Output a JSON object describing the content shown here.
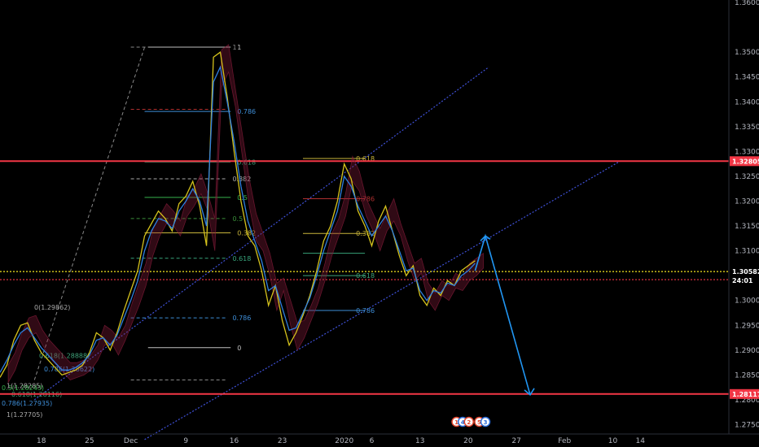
{
  "chart_data": {
    "type": "line",
    "title": "",
    "xlabel": "",
    "ylabel": "",
    "ylim": [
      1.2705,
      1.3605
    ],
    "y_ticks": [
      "1.35000",
      "1.34500",
      "1.34000",
      "1.33500",
      "1.33000",
      "1.32500",
      "1.32000",
      "1.31500",
      "1.31000",
      "1.30500",
      "1.30000",
      "1.29500",
      "1.29000",
      "1.28500",
      "1.28000",
      "1.27500",
      "1.36000"
    ],
    "x_ticks": [
      "18",
      "25",
      "Dec",
      "9",
      "16",
      "23",
      "2020",
      "6",
      "13",
      "20",
      "27",
      "Feb",
      "10",
      "14"
    ],
    "x_tick_days": [
      0,
      7,
      13,
      21,
      28,
      35,
      44,
      48,
      55,
      62,
      69,
      76,
      83,
      87
    ],
    "x_range_days": [
      -6,
      104
    ],
    "grid": false,
    "legend": "none",
    "colors": {
      "price_yellow": "#d4c21c",
      "price_blue": "#2f7fe0",
      "cloud": "#8a1c3c",
      "red_level": "#f23645",
      "projection": "#2196f3",
      "channel": "#3f51d8"
    },
    "price_levels": [
      {
        "label": "1.32805",
        "value": 1.32805,
        "style": "solid",
        "color": "#f23645"
      },
      {
        "label": "1.28117",
        "value": 1.28117,
        "style": "solid",
        "color": "#f23645"
      },
      {
        "label": "1.30582",
        "value": 1.30582,
        "style": "dotted",
        "color": "#f5e61f"
      },
      {
        "label": "",
        "value": 1.3042,
        "style": "dotted",
        "color": "#f23645"
      }
    ],
    "current_price": {
      "label": "1.30582",
      "countdown": "24:01"
    },
    "fib_main": {
      "x_days": [
        15,
        32
      ],
      "label_day": 27.5,
      "high": 1.351,
      "low": 1.2905,
      "levels": [
        {
          "label": "1",
          "ratio": 1,
          "color": "#c0c0c0"
        },
        {
          "label": "0.786",
          "ratio": 0.786,
          "color": "#3e8ed8"
        },
        {
          "label": "0.618",
          "ratio": 0.618,
          "color": "#3fa37a"
        },
        {
          "label": "0.5",
          "ratio": 0.5,
          "color": "#37b24d"
        },
        {
          "label": "0.382",
          "ratio": 0.382,
          "color": "#c8b43a"
        },
        {
          "label": "0",
          "ratio": 0,
          "color": "#c0c0c0"
        }
      ]
    },
    "fib_left": {
      "x_days": [
        -6,
        27
      ],
      "label_day": 28,
      "levels": [
        {
          "label": "1",
          "value": 1.351,
          "color": "#888888"
        },
        {
          "label": "",
          "value": 1.3385,
          "color": "#b03030"
        },
        {
          "label": "0.382",
          "value": 1.3245,
          "color": "#aaaaaa"
        },
        {
          "label": "0.5",
          "value": 1.3165,
          "color": "#3a8f3a"
        },
        {
          "label": "0.618",
          "value": 1.3085,
          "color": "#37a37a"
        },
        {
          "label": "0.786",
          "value": 1.2965,
          "color": "#3e8ed8"
        },
        {
          "label": "",
          "value": 1.284,
          "color": "#888888"
        }
      ]
    },
    "fib_right": {
      "x_days": [
        38,
        47
      ],
      "label_day": 45,
      "levels": [
        {
          "label": "0.618",
          "value": 1.3286,
          "color": "#c8b43a"
        },
        {
          "label": "0.786",
          "value": 1.3205,
          "color": "#b03030"
        },
        {
          "label": "0.382",
          "value": 1.3135,
          "color": "#c8b43a"
        },
        {
          "label": "",
          "value": 1.3095,
          "color": "#37a37a"
        },
        {
          "label": "0.618",
          "value": 1.305,
          "color": "#3fa37a"
        },
        {
          "label": "0.786",
          "value": 1.298,
          "color": "#3e8ed8"
        }
      ]
    },
    "fib_small_labels": [
      {
        "label": "0(1.29862)",
        "value": 1.29862,
        "color": "#aaaaaa"
      },
      {
        "label": "0.618(1.28888)",
        "value": 1.28888,
        "color": "#3fa37a"
      },
      {
        "label": "0.786(1.28622)",
        "value": 1.28622,
        "color": "#3e8ed8"
      },
      {
        "label": "0.5(1.28243)",
        "value": 1.28243,
        "color": "#37b24d"
      },
      {
        "label": "1(1.28285)",
        "value": 1.28285,
        "color": "#aaaaaa"
      },
      {
        "label": "0.618(1.28116)",
        "value": 1.28116,
        "color": "#3fa37a"
      },
      {
        "label": "0.786(1.27935)",
        "value": 1.27935,
        "color": "#3e8ed8"
      },
      {
        "label": "1(1.27705)",
        "value": 1.27705,
        "color": "#aaaaaa"
      }
    ],
    "price_yellow": {
      "x": [
        -6,
        -5,
        -4,
        -3,
        -2,
        -1,
        0,
        1,
        2,
        3,
        4,
        5,
        6,
        7,
        8,
        9,
        10,
        11,
        12,
        13,
        14,
        15,
        16,
        17,
        18,
        19,
        20,
        21,
        22,
        23,
        24,
        25,
        26,
        27,
        28,
        29,
        30,
        31,
        32,
        33,
        34,
        35,
        36,
        37,
        38,
        39,
        40,
        41,
        42,
        43,
        44,
        45,
        46,
        47,
        48,
        49,
        50,
        51,
        52,
        53,
        54,
        55,
        56,
        57,
        58,
        59,
        60,
        61,
        62,
        63
      ],
      "y": [
        1.2845,
        1.287,
        1.292,
        1.295,
        1.2955,
        1.292,
        1.2895,
        1.288,
        1.2865,
        1.285,
        1.2855,
        1.286,
        1.287,
        1.2895,
        1.2935,
        1.2925,
        1.29,
        1.2935,
        1.298,
        1.302,
        1.306,
        1.313,
        1.3155,
        1.318,
        1.3165,
        1.314,
        1.3195,
        1.321,
        1.324,
        1.319,
        1.311,
        1.349,
        1.35,
        1.341,
        1.33,
        1.32,
        1.313,
        1.311,
        1.306,
        1.299,
        1.303,
        1.296,
        1.291,
        1.2935,
        1.297,
        1.301,
        1.306,
        1.312,
        1.315,
        1.32,
        1.3275,
        1.3245,
        1.318,
        1.315,
        1.311,
        1.316,
        1.319,
        1.314,
        1.309,
        1.305,
        1.307,
        1.301,
        1.299,
        1.3025,
        1.301,
        1.304,
        1.303,
        1.306,
        1.307,
        1.308
      ]
    },
    "price_blue": {
      "x": [
        -6,
        -5,
        -4,
        -3,
        -2,
        -1,
        0,
        1,
        2,
        3,
        4,
        5,
        6,
        7,
        8,
        9,
        10,
        11,
        12,
        13,
        14,
        15,
        16,
        17,
        18,
        19,
        20,
        21,
        22,
        23,
        24,
        25,
        26,
        27,
        28,
        29,
        30,
        31,
        32,
        33,
        34,
        35,
        36,
        37,
        38,
        39,
        40,
        41,
        42,
        43,
        44,
        45,
        46,
        47,
        48,
        49,
        50,
        51,
        52,
        53,
        54,
        55,
        56,
        57,
        58,
        59,
        60,
        61,
        62,
        63
      ],
      "y": [
        1.2855,
        1.288,
        1.291,
        1.2935,
        1.2945,
        1.2925,
        1.2905,
        1.289,
        1.2875,
        1.286,
        1.286,
        1.2865,
        1.2875,
        1.289,
        1.292,
        1.2925,
        1.291,
        1.293,
        1.2965,
        1.3,
        1.304,
        1.31,
        1.314,
        1.3165,
        1.316,
        1.3145,
        1.318,
        1.32,
        1.3225,
        1.32,
        1.315,
        1.344,
        1.347,
        1.34,
        1.332,
        1.323,
        1.316,
        1.312,
        1.308,
        1.302,
        1.303,
        1.2985,
        1.294,
        1.2945,
        1.2975,
        1.3005,
        1.305,
        1.31,
        1.314,
        1.318,
        1.325,
        1.323,
        1.319,
        1.316,
        1.313,
        1.315,
        1.317,
        1.314,
        1.31,
        1.306,
        1.3065,
        1.302,
        1.3,
        1.302,
        1.3015,
        1.3035,
        1.303,
        1.305,
        1.306,
        1.3075
      ]
    },
    "projection": {
      "x": [
        63,
        64.5,
        71
      ],
      "y": [
        1.306,
        1.313,
        1.281
      ]
    },
    "channel_lines": [
      {
        "x1": 15,
        "y1": 1.272,
        "x2": 84,
        "y2": 1.328
      },
      {
        "x1": -1,
        "y1": 1.28,
        "x2": 65,
        "y2": 1.347
      }
    ],
    "event_tags": [
      {
        "label": "1",
        "day": 60.3,
        "color": "#e1452d"
      },
      {
        "label": "4",
        "day": 61.2,
        "color": "#2a6cd8"
      },
      {
        "label": "2",
        "day": 62.1,
        "color": "#e1452d"
      },
      {
        "label": "5",
        "day": 63.6,
        "color": "#e1452d"
      },
      {
        "label": "3",
        "day": 64.5,
        "color": "#2a6cd8"
      }
    ]
  }
}
